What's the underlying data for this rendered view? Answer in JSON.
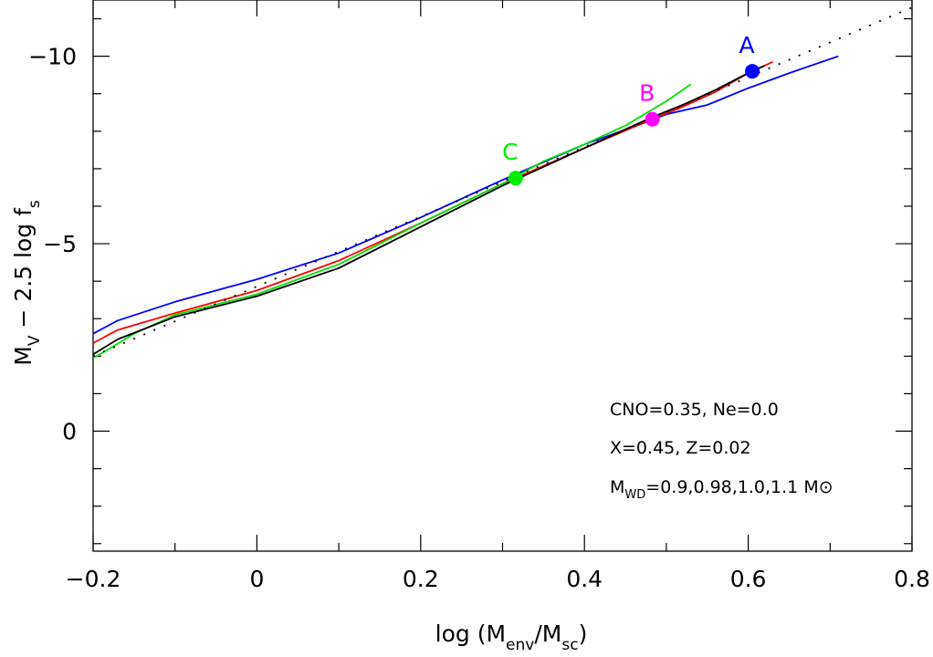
{
  "chart_data": {
    "type": "line",
    "title": "",
    "xlabel": {
      "pre": "log (M",
      "sub1": "env",
      "mid": "/M",
      "sub2": "sc",
      "post": ")"
    },
    "ylabel": {
      "pre": "M",
      "sub1": "V",
      "mid": " − 2.5 log f",
      "sub2": "s",
      "post": ""
    },
    "xlim": [
      -0.2,
      0.8
    ],
    "ylim": [
      3.2,
      -11.5
    ],
    "y_inverted": true,
    "x_ticks": [
      -0.2,
      0,
      0.2,
      0.4,
      0.6,
      0.8
    ],
    "x_tick_labels": [
      "−0.2",
      "0",
      "0.2",
      "0.4",
      "0.6",
      "0.8"
    ],
    "y_ticks": [
      0,
      -5,
      -10
    ],
    "y_tick_labels": [
      "0",
      "−5",
      "−10"
    ],
    "x_minor_step": 0.1,
    "y_minor_step": 1,
    "grid": false,
    "legend": "none",
    "series": [
      {
        "color": "#0000ff",
        "style": "solid",
        "x": [
          -0.2,
          -0.17,
          -0.1,
          0,
          0.1,
          0.2,
          0.3,
          0.4,
          0.47,
          0.5,
          0.55,
          0.6,
          0.65,
          0.71
        ],
        "y": [
          -2.6,
          -2.95,
          -3.45,
          -4.05,
          -4.75,
          -5.7,
          -6.7,
          -7.65,
          -8.2,
          -8.45,
          -8.7,
          -9.15,
          -9.55,
          -10.0
        ]
      },
      {
        "color": "#ff0000",
        "style": "solid",
        "x": [
          -0.2,
          -0.17,
          -0.1,
          0,
          0.1,
          0.2,
          0.3,
          0.4,
          0.48,
          0.52,
          0.56,
          0.6,
          0.63
        ],
        "y": [
          -2.35,
          -2.7,
          -3.15,
          -3.75,
          -4.55,
          -5.55,
          -6.6,
          -7.55,
          -8.3,
          -8.65,
          -9.05,
          -9.55,
          -9.85
        ]
      },
      {
        "color": "#00e000",
        "style": "solid",
        "x": [
          -0.2,
          -0.18,
          -0.15,
          -0.1,
          0,
          0.1,
          0.2,
          0.3,
          0.35,
          0.4,
          0.45,
          0.5,
          0.53
        ],
        "y": [
          -1.95,
          -2.2,
          -2.6,
          -3.1,
          -3.65,
          -4.45,
          -5.55,
          -6.6,
          -7.2,
          -7.65,
          -8.15,
          -8.8,
          -9.25
        ]
      },
      {
        "color": "#000000",
        "style": "solid",
        "x": [
          -0.2,
          -0.17,
          -0.1,
          0,
          0.1,
          0.2,
          0.3,
          0.4,
          0.48,
          0.52,
          0.56,
          0.6,
          0.62
        ],
        "y": [
          -2.05,
          -2.45,
          -3.05,
          -3.6,
          -4.35,
          -5.45,
          -6.55,
          -7.55,
          -8.35,
          -8.7,
          -9.1,
          -9.55,
          -9.75
        ]
      },
      {
        "color": "#000000",
        "style": "dotted",
        "x": [
          -0.2,
          0.8
        ],
        "y": [
          -2.0,
          -11.3
        ]
      }
    ],
    "points": [
      {
        "label": "A",
        "x": 0.605,
        "y": -9.6,
        "color": "#0000ff"
      },
      {
        "label": "B",
        "x": 0.483,
        "y": -8.32,
        "color": "#ff00ff"
      },
      {
        "label": "C",
        "x": 0.316,
        "y": -6.75,
        "color": "#00ee00"
      }
    ],
    "annotations": {
      "line1": "CNO=0.35, Ne=0.0",
      "line2": "X=0.45, Z=0.02",
      "line3_pre": "M",
      "line3_sub": "WD",
      "line3_post": "=0.9,0.98,1.0,1.1 M",
      "line3_sun": "⊙"
    }
  }
}
